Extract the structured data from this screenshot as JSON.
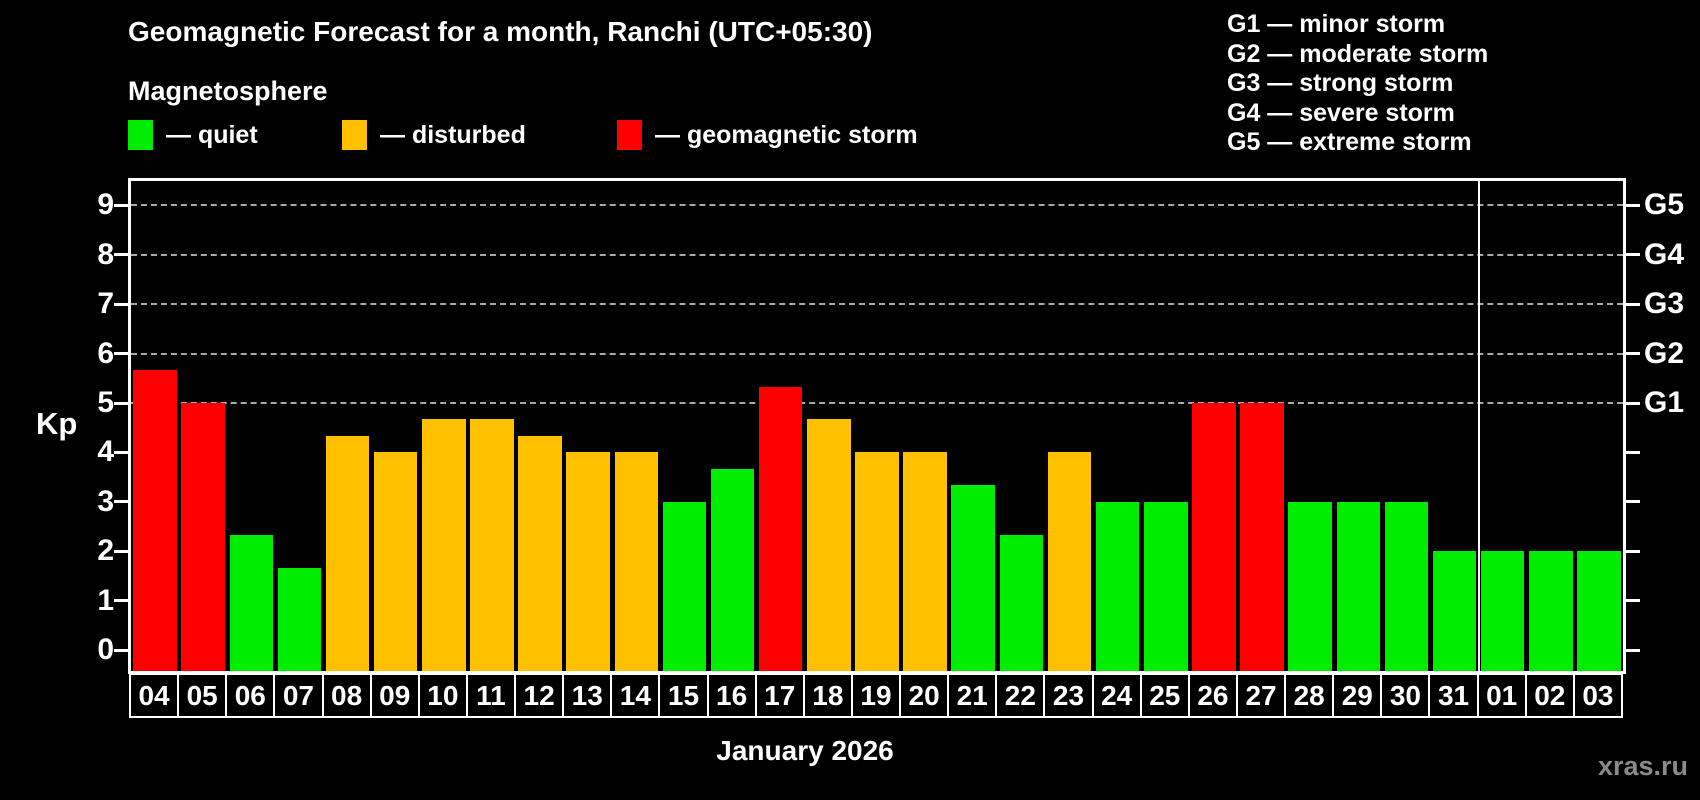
{
  "header": {
    "title": "Geomagnetic Forecast for a month, Ranchi (UTC+05:30)",
    "subtitle": "Magnetosphere"
  },
  "legend": {
    "items": [
      {
        "key": "quiet",
        "label": "— quiet",
        "color": "#00ec00"
      },
      {
        "key": "disturbed",
        "label": "— disturbed",
        "color": "#ffc000"
      },
      {
        "key": "storm",
        "label": "— geomagnetic storm",
        "color": "#ff0000"
      }
    ]
  },
  "storm_scale_legend": [
    "G1 — minor storm",
    "G2 — moderate storm",
    "G3 — strong storm",
    "G4 — severe storm",
    "G5 — extreme storm"
  ],
  "chart_data": {
    "type": "bar",
    "title": "Geomagnetic Forecast for a month, Ranchi (UTC+05:30)",
    "ylabel": "Kp",
    "xlabel": "January 2026",
    "ylim": [
      -0.45,
      9.5
    ],
    "yticks": [
      0,
      1,
      2,
      3,
      4,
      5,
      6,
      7,
      8,
      9
    ],
    "gridlines_at": [
      5,
      6,
      7,
      8,
      9
    ],
    "grid": "dashed horizontal at storm levels only",
    "legend_position": "top",
    "right_axis": [
      {
        "kp": 5,
        "label": "G1"
      },
      {
        "kp": 6,
        "label": "G2"
      },
      {
        "kp": 7,
        "label": "G3"
      },
      {
        "kp": 8,
        "label": "G4"
      },
      {
        "kp": 9,
        "label": "G5"
      }
    ],
    "categories": [
      "04",
      "05",
      "06",
      "07",
      "08",
      "09",
      "10",
      "11",
      "12",
      "13",
      "14",
      "15",
      "16",
      "17",
      "18",
      "19",
      "20",
      "21",
      "22",
      "23",
      "24",
      "25",
      "26",
      "27",
      "28",
      "29",
      "30",
      "31",
      "01",
      "02",
      "03"
    ],
    "values": [
      5.67,
      5.0,
      2.33,
      1.67,
      4.33,
      4.0,
      4.67,
      4.67,
      4.33,
      4.0,
      4.0,
      3.0,
      3.67,
      5.33,
      4.67,
      4.0,
      4.0,
      3.33,
      2.33,
      4.0,
      3.0,
      3.0,
      5.0,
      5.0,
      3.0,
      3.0,
      3.0,
      2.0,
      2.0,
      2.0,
      2.0
    ],
    "levels": [
      "storm",
      "storm",
      "quiet",
      "quiet",
      "disturbed",
      "disturbed",
      "disturbed",
      "disturbed",
      "disturbed",
      "disturbed",
      "disturbed",
      "quiet",
      "quiet",
      "storm",
      "disturbed",
      "disturbed",
      "disturbed",
      "quiet",
      "quiet",
      "disturbed",
      "quiet",
      "quiet",
      "storm",
      "storm",
      "quiet",
      "quiet",
      "quiet",
      "quiet",
      "quiet",
      "quiet",
      "quiet"
    ],
    "colors": {
      "quiet": "#00ec00",
      "disturbed": "#ffc000",
      "storm": "#ff0000"
    },
    "month_separator_after": "31"
  },
  "watermark": "xras.ru"
}
